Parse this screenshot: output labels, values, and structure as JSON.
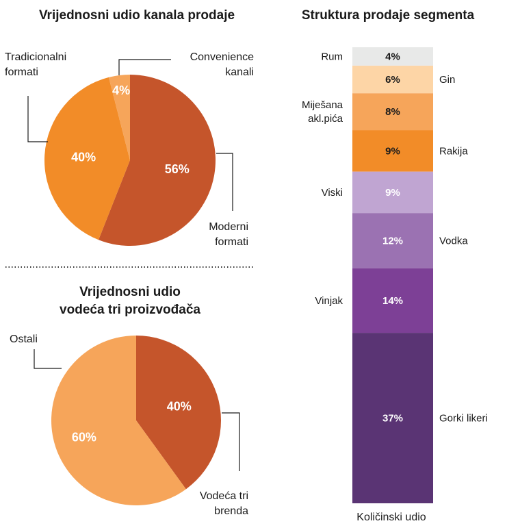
{
  "chart_data": [
    {
      "type": "pie",
      "title": "Vrijednosni udio kanala prodaje",
      "slices": [
        {
          "label": "Moderni formati",
          "value": 56,
          "display": "56%",
          "color": "#c5552b",
          "label_color": "#ffffff"
        },
        {
          "label": "Tradicionalni formati",
          "value": 40,
          "display": "40%",
          "color": "#f28c28",
          "label_color": "#ffffff"
        },
        {
          "label": "Convenience kanali",
          "value": 4,
          "display": "4%",
          "color": "#f6a55a",
          "label_color": "#ffffff"
        }
      ],
      "annotations": {
        "moderni": [
          "Moderni",
          "formati"
        ],
        "tradicionalni": [
          "Tradicionalni",
          "formati"
        ],
        "convenience": [
          "Convenience",
          "kanali"
        ]
      }
    },
    {
      "type": "pie",
      "title_lines": [
        "Vrijednosni udio",
        "vodeća tri proizvođača"
      ],
      "slices": [
        {
          "label": "Vodeća tri brenda",
          "value": 40,
          "display": "40%",
          "color": "#c5552b",
          "label_color": "#ffffff"
        },
        {
          "label": "Ostali",
          "value": 60,
          "display": "60%",
          "color": "#f6a55a",
          "label_color": "#ffffff"
        }
      ],
      "annotations": {
        "vodeca": [
          "Vodeća tri",
          "brenda"
        ],
        "ostali": [
          "Ostali"
        ]
      }
    },
    {
      "type": "bar",
      "stacked": true,
      "title": "Struktura prodaje segmenta",
      "xlabel": "Količinski udio",
      "segments": [
        {
          "label": "Rum",
          "label_lines": [
            "Rum"
          ],
          "value": 4,
          "display": "4%",
          "color": "#e8e9e8",
          "text_color": "#1a1a1a",
          "side": "left"
        },
        {
          "label": "Gin",
          "label_lines": [
            "Gin"
          ],
          "value": 6,
          "display": "6%",
          "color": "#fdd5a6",
          "text_color": "#1a1a1a",
          "side": "right"
        },
        {
          "label": "Miješana akl.pića",
          "label_lines": [
            "Miješana",
            "akl.pića"
          ],
          "value": 8,
          "display": "8%",
          "color": "#f6a55a",
          "text_color": "#1a1a1a",
          "side": "left"
        },
        {
          "label": "Rakija",
          "label_lines": [
            "Rakija"
          ],
          "value": 9,
          "display": "9%",
          "color": "#f28c28",
          "text_color": "#1a1a1a",
          "side": "right"
        },
        {
          "label": "Viski",
          "label_lines": [
            "Viski"
          ],
          "value": 9,
          "display": "9%",
          "color": "#c0a5d2",
          "text_color": "#ffffff",
          "side": "left"
        },
        {
          "label": "Vodka",
          "label_lines": [
            "Vodka"
          ],
          "value": 12,
          "display": "12%",
          "color": "#9b72b2",
          "text_color": "#ffffff",
          "side": "right"
        },
        {
          "label": "Vinjak",
          "label_lines": [
            "Vinjak"
          ],
          "value": 14,
          "display": "14%",
          "color": "#7d4096",
          "text_color": "#ffffff",
          "side": "left"
        },
        {
          "label": "Gorki likeri",
          "label_lines": [
            "Gorki likeri"
          ],
          "value": 37,
          "display": "37%",
          "color": "#5a3474",
          "text_color": "#ffffff",
          "side": "right"
        }
      ]
    }
  ]
}
